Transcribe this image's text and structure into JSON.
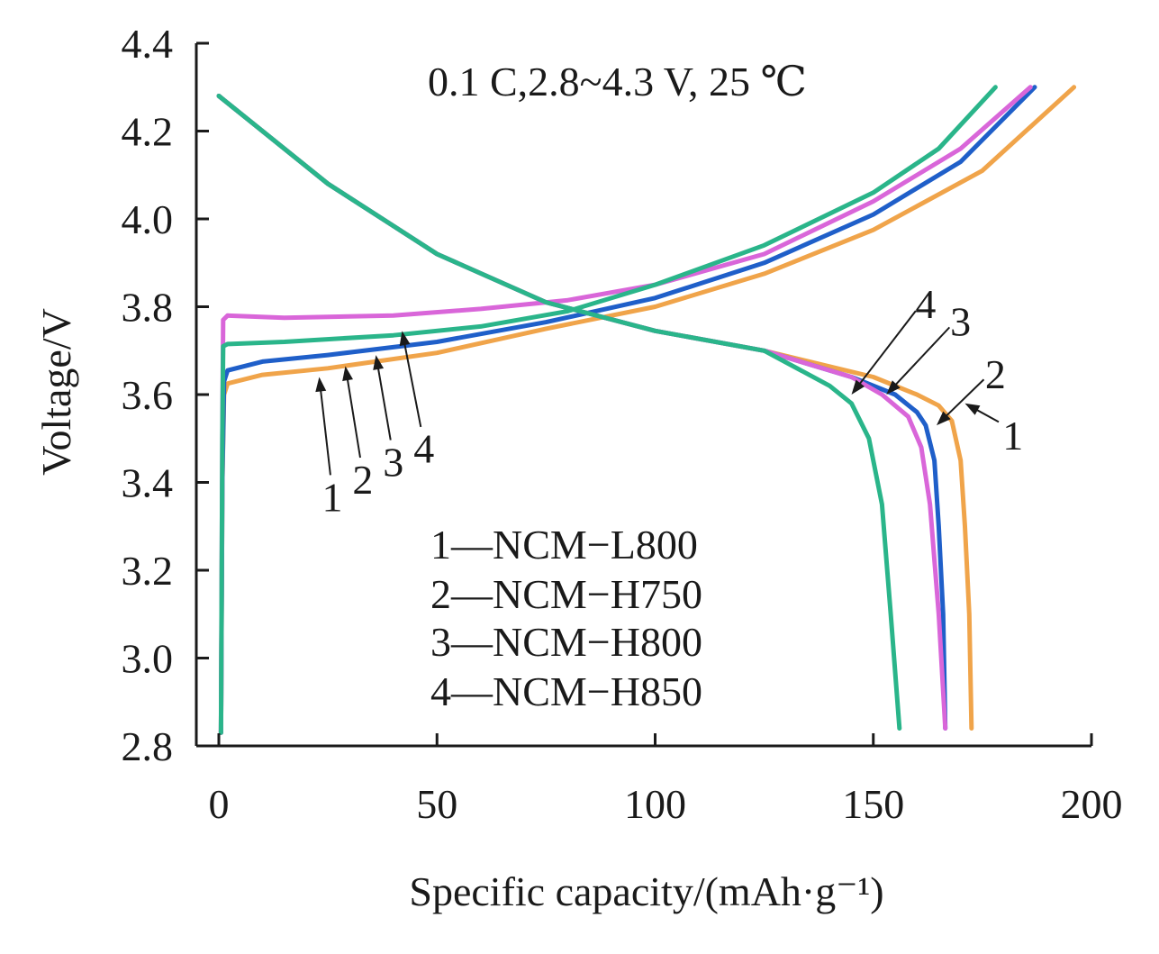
{
  "chart_data": {
    "type": "line",
    "title": "",
    "annotation": "0.1 C,2.8~4.3 V, 25 ℃",
    "xlabel": "Specific capacity/(mAh·g⁻¹)",
    "ylabel": "Voltage/V",
    "xlim": [
      0,
      200
    ],
    "ylim": [
      2.8,
      4.4
    ],
    "xticks": [
      "0",
      "50",
      "100",
      "150",
      "200"
    ],
    "yticks": [
      "2.8",
      "3.0",
      "3.2",
      "3.4",
      "3.6",
      "3.8",
      "4.0",
      "4.2",
      "4.4"
    ],
    "grid": false,
    "legend": {
      "placement": "center-bottom",
      "entries": [
        "1—NCM−L800",
        "2—NCM−H750",
        "3—NCM−H800",
        "4—NCM−H850"
      ]
    },
    "series": [
      {
        "name": "1—NCM−L800",
        "color": "#f0a44a",
        "charge": [
          [
            0.5,
            2.83
          ],
          [
            0.8,
            3.4
          ],
          [
            1.2,
            3.6
          ],
          [
            2,
            3.625
          ],
          [
            10,
            3.645
          ],
          [
            25,
            3.66
          ],
          [
            50,
            3.695
          ],
          [
            75,
            3.75
          ],
          [
            100,
            3.8
          ],
          [
            125,
            3.875
          ],
          [
            150,
            3.975
          ],
          [
            175,
            4.11
          ],
          [
            196,
            4.3
          ]
        ],
        "discharge": [
          [
            0,
            4.28
          ],
          [
            25,
            4.08
          ],
          [
            50,
            3.92
          ],
          [
            75,
            3.81
          ],
          [
            100,
            3.745
          ],
          [
            125,
            3.7
          ],
          [
            150,
            3.64
          ],
          [
            160,
            3.6
          ],
          [
            165,
            3.575
          ],
          [
            168,
            3.54
          ],
          [
            170,
            3.45
          ],
          [
            171,
            3.3
          ],
          [
            172,
            3.1
          ],
          [
            172.5,
            2.84
          ]
        ]
      },
      {
        "name": "2—NCM−H750",
        "color": "#1f5fc9",
        "charge": [
          [
            0.5,
            2.83
          ],
          [
            0.8,
            3.4
          ],
          [
            1.2,
            3.63
          ],
          [
            2,
            3.655
          ],
          [
            10,
            3.675
          ],
          [
            25,
            3.69
          ],
          [
            50,
            3.72
          ],
          [
            75,
            3.765
          ],
          [
            100,
            3.82
          ],
          [
            125,
            3.9
          ],
          [
            150,
            4.01
          ],
          [
            170,
            4.13
          ],
          [
            187,
            4.3
          ]
        ],
        "discharge": [
          [
            0,
            4.28
          ],
          [
            25,
            4.08
          ],
          [
            50,
            3.92
          ],
          [
            75,
            3.81
          ],
          [
            100,
            3.745
          ],
          [
            125,
            3.7
          ],
          [
            145,
            3.64
          ],
          [
            155,
            3.6
          ],
          [
            160,
            3.56
          ],
          [
            162,
            3.53
          ],
          [
            164,
            3.45
          ],
          [
            165,
            3.3
          ],
          [
            166,
            3.1
          ],
          [
            166.5,
            2.84
          ]
        ]
      },
      {
        "name": "3—NCM−H800",
        "color": "#d966d9",
        "charge": [
          [
            0.5,
            2.83
          ],
          [
            0.8,
            3.5
          ],
          [
            1,
            3.77
          ],
          [
            2,
            3.78
          ],
          [
            15,
            3.775
          ],
          [
            40,
            3.78
          ],
          [
            60,
            3.795
          ],
          [
            80,
            3.815
          ],
          [
            100,
            3.85
          ],
          [
            125,
            3.92
          ],
          [
            150,
            4.04
          ],
          [
            170,
            4.16
          ],
          [
            186,
            4.3
          ]
        ],
        "discharge": [
          [
            0,
            4.28
          ],
          [
            25,
            4.08
          ],
          [
            50,
            3.92
          ],
          [
            75,
            3.81
          ],
          [
            100,
            3.745
          ],
          [
            125,
            3.7
          ],
          [
            145,
            3.64
          ],
          [
            152,
            3.6
          ],
          [
            158,
            3.55
          ],
          [
            161,
            3.48
          ],
          [
            163,
            3.35
          ],
          [
            165,
            3.1
          ],
          [
            166.5,
            2.84
          ]
        ]
      },
      {
        "name": "4—NCM−H850",
        "color": "#2ab58a",
        "charge": [
          [
            0.5,
            2.83
          ],
          [
            0.8,
            3.5
          ],
          [
            1,
            3.71
          ],
          [
            2,
            3.715
          ],
          [
            15,
            3.72
          ],
          [
            40,
            3.735
          ],
          [
            60,
            3.755
          ],
          [
            80,
            3.79
          ],
          [
            100,
            3.85
          ],
          [
            125,
            3.94
          ],
          [
            150,
            4.06
          ],
          [
            165,
            4.16
          ],
          [
            178,
            4.3
          ]
        ],
        "discharge": [
          [
            0,
            4.28
          ],
          [
            25,
            4.08
          ],
          [
            50,
            3.92
          ],
          [
            75,
            3.81
          ],
          [
            100,
            3.745
          ],
          [
            125,
            3.7
          ],
          [
            140,
            3.62
          ],
          [
            145,
            3.58
          ],
          [
            149,
            3.5
          ],
          [
            152,
            3.35
          ],
          [
            154,
            3.1
          ],
          [
            156,
            2.84
          ]
        ]
      }
    ],
    "callouts": [
      {
        "label": "1",
        "tip": [
          171,
          3.58
        ],
        "text_at": [
          182,
          3.52
        ]
      },
      {
        "label": "2",
        "tip": [
          164.5,
          3.53
        ],
        "text_at": [
          178,
          3.66
        ]
      },
      {
        "label": "3",
        "tip": [
          153,
          3.6
        ],
        "text_at": [
          170,
          3.78
        ]
      },
      {
        "label": "4",
        "tip": [
          145,
          3.6
        ],
        "text_at": [
          162,
          3.82
        ]
      },
      {
        "label": "1",
        "tip": [
          23,
          3.64
        ],
        "text_at": [
          26,
          3.38
        ]
      },
      {
        "label": "2",
        "tip": [
          29,
          3.665
        ],
        "text_at": [
          33,
          3.42
        ]
      },
      {
        "label": "3",
        "tip": [
          36,
          3.69
        ],
        "text_at": [
          40,
          3.46
        ]
      },
      {
        "label": "4",
        "tip": [
          42,
          3.745
        ],
        "text_at": [
          47,
          3.49
        ]
      }
    ]
  }
}
